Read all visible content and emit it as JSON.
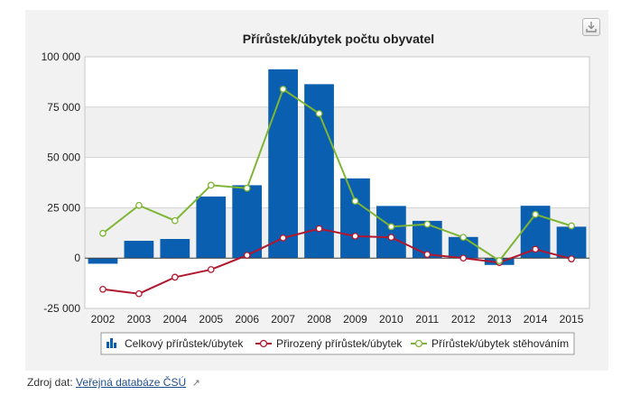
{
  "chart_data": {
    "type": "bar",
    "title": "Přírůstek/úbytek počtu obyvatel",
    "categories": [
      "2002",
      "2003",
      "2004",
      "2005",
      "2006",
      "2007",
      "2008",
      "2009",
      "2010",
      "2011",
      "2012",
      "2013",
      "2014",
      "2015"
    ],
    "ylim": [
      -25000,
      100000
    ],
    "yticks": [
      -25000,
      0,
      25000,
      50000,
      75000,
      100000
    ],
    "ytick_labels": [
      "-25 000",
      "0",
      "25 000",
      "50 000",
      "75 000",
      "100 000"
    ],
    "grid": true,
    "legend_position": "bottom",
    "series": [
      {
        "name": "Celkový přírůstek/úbytek",
        "type": "bar",
        "color": "#0b5fb0",
        "values": [
          -2800,
          8600,
          9500,
          30600,
          36200,
          93800,
          86400,
          39600,
          25900,
          18500,
          10500,
          -3400,
          26000,
          15600
        ]
      },
      {
        "name": "Přirozený přírůstek/úbytek",
        "type": "line",
        "color": "#b0182f",
        "values": [
          -15500,
          -17700,
          -9500,
          -5700,
          1400,
          10000,
          14600,
          10900,
          10300,
          1800,
          0,
          -2200,
          4400,
          -400
        ]
      },
      {
        "name": "Přírůstek/úbytek stěhováním",
        "type": "line",
        "color": "#7fb534",
        "values": [
          12300,
          26200,
          18600,
          36200,
          34700,
          83900,
          71800,
          28300,
          15600,
          16800,
          10300,
          -1300,
          21700,
          16000
        ]
      }
    ]
  },
  "source": {
    "label": "Zdroj dat:",
    "link_text": "Veřejná databáze ČSÚ",
    "ext_glyph": "↗"
  },
  "icons": {
    "export": "download-icon",
    "external": "external-link-icon"
  }
}
